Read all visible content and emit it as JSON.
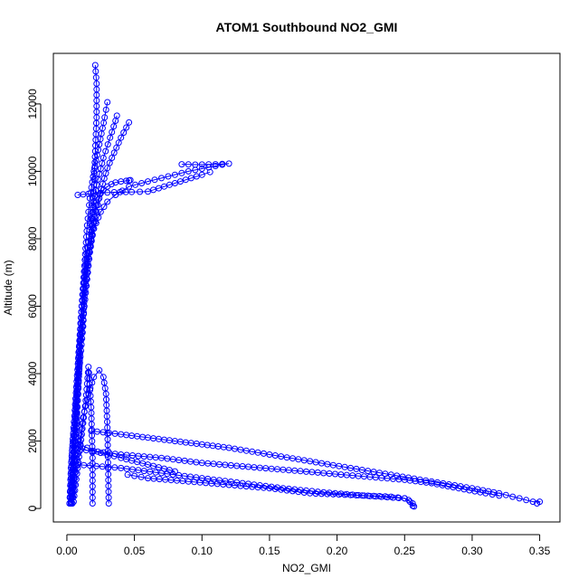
{
  "chart_data": {
    "type": "scatter",
    "title": "ATOM1 Southbound NO2_GMI",
    "xlabel": "NO2_GMI",
    "ylabel": "Altitude (m)",
    "xlim": [
      -0.01,
      0.365
    ],
    "ylim": [
      -400,
      13500
    ],
    "xticks": [
      0.0,
      0.05,
      0.1,
      0.15,
      0.2,
      0.25,
      0.3,
      0.35
    ],
    "xtick_labels": [
      "0.00",
      "0.05",
      "0.10",
      "0.15",
      "0.20",
      "0.25",
      "0.30",
      "0.35"
    ],
    "yticks": [
      0,
      2000,
      4000,
      6000,
      8000,
      10000,
      12000
    ],
    "ytick_labels": [
      "0",
      "2000",
      "4000",
      "6000",
      "8000",
      "10000",
      "12000"
    ],
    "grid": false,
    "marker": "open-circle",
    "connected": true,
    "color": "#0000ff",
    "profiles": [
      {
        "x": [
          0.003,
          0.004,
          0.006,
          0.007,
          0.008,
          0.009,
          0.01,
          0.012,
          0.014,
          0.016,
          0.018,
          0.019,
          0.02,
          0.021,
          0.022,
          0.022,
          0.021
        ],
        "y": [
          150,
          800,
          1600,
          2400,
          3200,
          4000,
          4800,
          5600,
          6400,
          7200,
          8000,
          8800,
          9600,
          10600,
          11600,
          12600,
          13150
        ]
      },
      {
        "x": [
          0.002,
          0.003,
          0.005,
          0.007,
          0.009,
          0.011,
          0.013,
          0.015,
          0.017,
          0.02,
          0.024,
          0.028,
          0.03
        ],
        "y": [
          150,
          1200,
          2400,
          3600,
          4800,
          6000,
          7200,
          8400,
          9200,
          10000,
          10800,
          11600,
          12050
        ]
      },
      {
        "x": [
          0.003,
          0.005,
          0.007,
          0.009,
          0.011,
          0.014,
          0.018,
          0.022,
          0.027,
          0.032,
          0.036,
          0.037
        ],
        "y": [
          150,
          1500,
          3000,
          4500,
          6000,
          7400,
          8600,
          9600,
          10400,
          11000,
          11500,
          11650
        ]
      },
      {
        "x": [
          0.004,
          0.006,
          0.008,
          0.01,
          0.013,
          0.017,
          0.022,
          0.03,
          0.04,
          0.046
        ],
        "y": [
          150,
          1600,
          3200,
          4800,
          6400,
          7800,
          9000,
          10100,
          11000,
          11450
        ]
      },
      {
        "x": [
          0.003,
          0.005,
          0.008,
          0.011,
          0.015,
          0.02,
          0.025,
          0.03,
          0.036,
          0.046,
          0.06,
          0.075,
          0.09,
          0.105,
          0.115,
          0.12,
          0.11,
          0.095,
          0.085
        ],
        "y": [
          200,
          2000,
          4000,
          6000,
          7400,
          8300,
          8800,
          9100,
          9300,
          9550,
          9700,
          9850,
          10000,
          10120,
          10200,
          10230,
          10210,
          10200,
          10210
        ]
      },
      {
        "x": [
          0.008,
          0.02,
          0.035,
          0.048,
          0.06,
          0.08,
          0.1,
          0.106
        ],
        "y": [
          9300,
          9350,
          9380,
          9390,
          9400,
          9650,
          9900,
          9980
        ]
      },
      {
        "x": [
          0.002,
          0.003,
          0.004,
          0.006,
          0.008,
          0.01,
          0.012,
          0.013,
          0.015,
          0.017,
          0.019,
          0.021,
          0.022,
          0.023,
          0.024,
          0.025,
          0.027,
          0.03,
          0.033,
          0.036,
          0.04,
          0.044,
          0.046,
          0.047
        ],
        "y": [
          150,
          900,
          1800,
          2700,
          3600,
          4500,
          5400,
          6300,
          7000,
          7600,
          8100,
          8500,
          8800,
          9000,
          9200,
          9350,
          9450,
          9550,
          9620,
          9670,
          9700,
          9720,
          9730,
          9740
        ]
      },
      {
        "x": [
          0.004,
          0.006,
          0.009,
          0.012,
          0.016,
          0.02,
          0.024,
          0.027,
          0.029,
          0.03,
          0.031
        ],
        "y": [
          150,
          900,
          1800,
          2700,
          3400,
          3900,
          4100,
          3900,
          3400,
          2400,
          150
        ]
      },
      {
        "x": [
          0.005,
          0.008,
          0.011,
          0.014,
          0.016,
          0.018,
          0.019,
          0.019
        ],
        "y": [
          200,
          1200,
          2200,
          3200,
          4200,
          3000,
          1500,
          150
        ]
      },
      {
        "x": [
          0.018,
          0.04,
          0.06,
          0.08,
          0.1,
          0.12,
          0.15,
          0.18,
          0.21,
          0.24,
          0.27,
          0.3,
          0.32,
          0.335,
          0.345,
          0.35,
          0.348
        ],
        "y": [
          2300,
          2200,
          2100,
          2000,
          1900,
          1800,
          1600,
          1400,
          1200,
          1000,
          800,
          600,
          450,
          300,
          200,
          200,
          150
        ]
      },
      {
        "x": [
          0.01,
          0.04,
          0.07,
          0.1,
          0.13,
          0.16,
          0.19,
          0.22,
          0.25,
          0.27,
          0.29,
          0.31,
          0.32
        ],
        "y": [
          1750,
          1600,
          1500,
          1350,
          1250,
          1150,
          1050,
          950,
          850,
          750,
          600,
          450,
          380
        ]
      },
      {
        "x": [
          0.008,
          0.04,
          0.07,
          0.1,
          0.13,
          0.16,
          0.19,
          0.22,
          0.25,
          0.253,
          0.256,
          0.257
        ],
        "y": [
          1300,
          1200,
          1050,
          900,
          750,
          600,
          480,
          380,
          300,
          250,
          150,
          60
        ]
      },
      {
        "x": [
          0.045,
          0.06,
          0.09,
          0.12,
          0.15,
          0.18,
          0.21,
          0.24,
          0.25,
          0.254,
          0.256
        ],
        "y": [
          1000,
          900,
          800,
          700,
          600,
          450,
          400,
          350,
          300,
          200,
          80
        ]
      },
      {
        "x": [
          0.01,
          0.015,
          0.02,
          0.03,
          0.04,
          0.06,
          0.08
        ],
        "y": [
          1900,
          1800,
          1700,
          1600,
          1500,
          1300,
          1100
        ]
      }
    ]
  }
}
